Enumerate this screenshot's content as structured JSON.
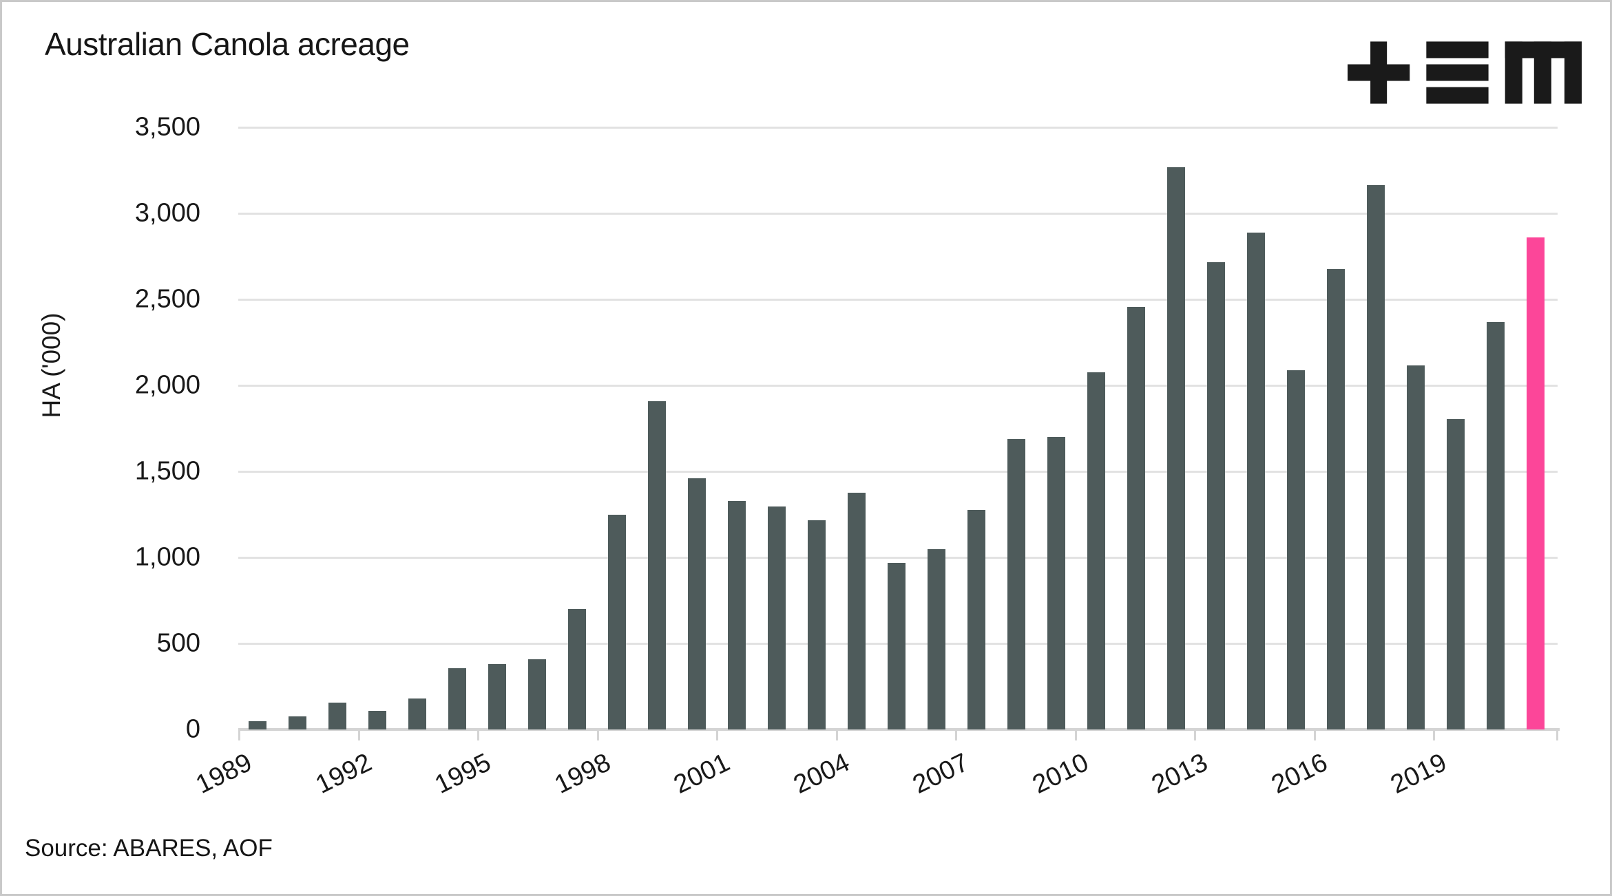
{
  "header": {
    "title": "Australian Canola acreage"
  },
  "logo": {
    "name": "TEM logo",
    "glyphs": [
      "plus",
      "triple-bar",
      "m"
    ]
  },
  "source_note": "Source: ABARES, AOF",
  "colors": {
    "bar": "#4e5b5b",
    "highlight": "#fc4699",
    "gridline": "#e2e2e2",
    "axis": "#d4d4d4",
    "text": "#1a1a1a",
    "logo": "#1a1a1a",
    "border": "#c9c9c9"
  },
  "y_axis": {
    "label": "HA ('000)",
    "tick_labels": [
      "3,500",
      "3,000",
      "2,500",
      "2,000",
      "1,500",
      "1,000",
      "500",
      "0"
    ],
    "tick_values": [
      3500,
      3000,
      2500,
      2000,
      1500,
      1000,
      500,
      0
    ]
  },
  "x_axis": {
    "tick_years": [
      "1989",
      "1992",
      "1995",
      "1998",
      "2001",
      "2004",
      "2007",
      "2010",
      "2013",
      "2016",
      "2019"
    ]
  },
  "chart_data": {
    "type": "bar",
    "title": "Australian Canola acreage",
    "ylabel": "HA ('000)",
    "xlabel": "",
    "unit": "thousand hectares",
    "ylim": [
      0,
      3500
    ],
    "grid": "horizontal",
    "legend": "none",
    "x": [
      1989,
      1990,
      1991,
      1992,
      1993,
      1994,
      1995,
      1996,
      1997,
      1998,
      1999,
      2000,
      2001,
      2002,
      2003,
      2004,
      2005,
      2006,
      2007,
      2008,
      2009,
      2010,
      2011,
      2012,
      2013,
      2014,
      2015,
      2016,
      2017,
      2018,
      2019,
      2020,
      2021
    ],
    "values": [
      50,
      75,
      155,
      110,
      180,
      355,
      380,
      410,
      700,
      1250,
      1910,
      1460,
      1330,
      1295,
      1215,
      1375,
      970,
      1050,
      1275,
      1690,
      1700,
      2075,
      2455,
      3270,
      2715,
      2890,
      2090,
      2675,
      3165,
      2115,
      1805,
      2370,
      2860
    ],
    "highlighted_year": 2021,
    "highlight_meaning": "most recent (forecast) season shown in pink"
  }
}
